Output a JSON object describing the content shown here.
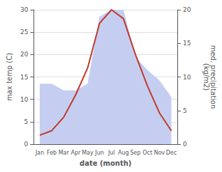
{
  "chart_data": {
    "type": "line",
    "categories": [
      "Jan",
      "Feb",
      "Mar",
      "Apr",
      "May",
      "Jun",
      "Jul",
      "Aug",
      "Sep",
      "Oct",
      "Nov",
      "Dec"
    ],
    "xlabel": "date (month)",
    "ylabel": "max temp (C)",
    "y2label": "med. precipitation\n(kg/m2)",
    "series": [
      {
        "type": "area",
        "color": "#c5cef0",
        "axis": "y2",
        "values": [
          9,
          9,
          8,
          8,
          9,
          19,
          20,
          20,
          13,
          11,
          9.5,
          7
        ]
      },
      {
        "type": "line",
        "color": "#c0392b",
        "values": [
          2,
          3,
          6,
          11,
          17,
          27,
          30,
          28,
          20,
          13,
          7,
          3
        ]
      }
    ],
    "ylim": [
      0,
      30
    ],
    "yticks": [
      0,
      5,
      10,
      15,
      20,
      25,
      30
    ],
    "y2lim": [
      0,
      20
    ],
    "y2ticks": [
      0,
      5,
      10,
      15,
      20
    ],
    "grid": true
  }
}
